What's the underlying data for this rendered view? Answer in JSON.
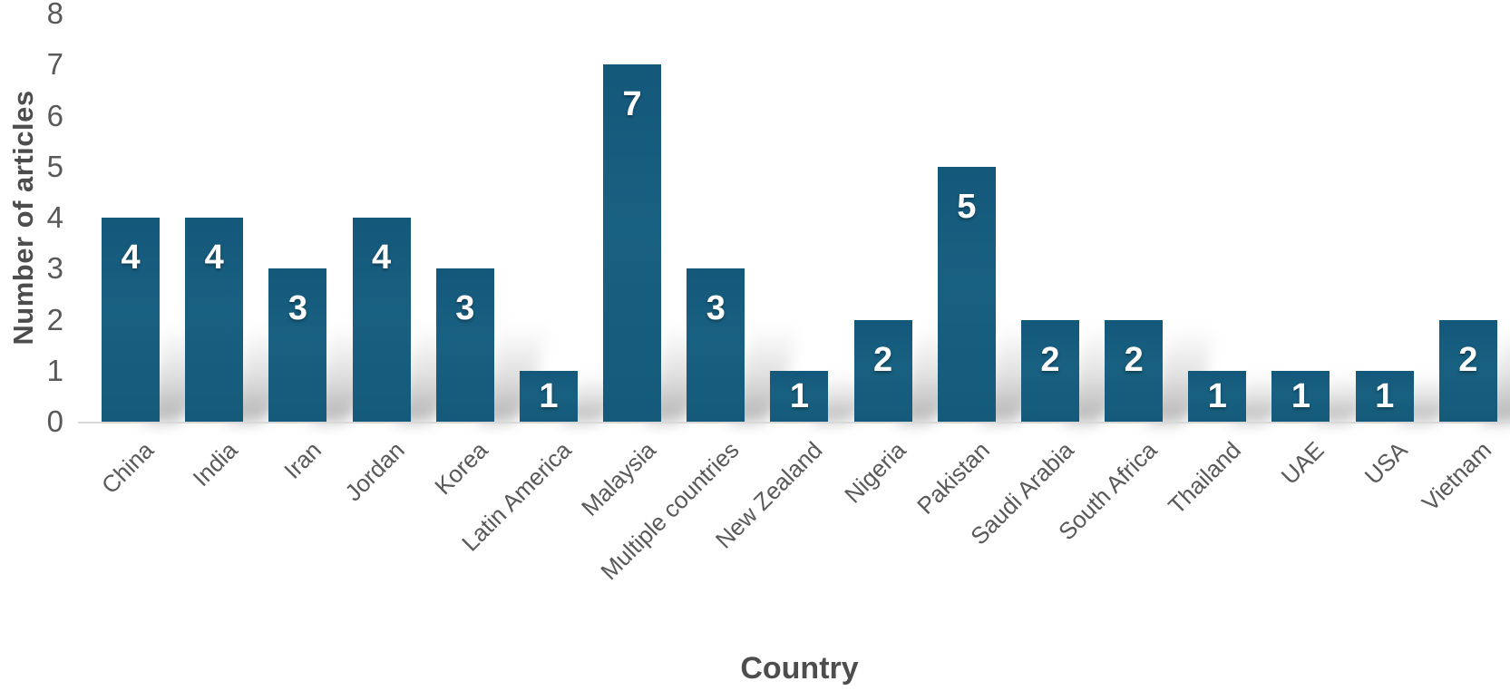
{
  "chart_data": {
    "type": "bar",
    "title": "",
    "xlabel": "Country",
    "ylabel": "Number of articles",
    "categories": [
      "China",
      "India",
      "Iran",
      "Jordan",
      "Korea",
      "Latin America",
      "Malaysia",
      "Multiple countries",
      "New Zealand",
      "Nigeria",
      "Pakistan",
      "Saudi Arabia",
      "South Africa",
      "Thailand",
      "UAE",
      "USA",
      "Vietnam"
    ],
    "values": [
      4,
      4,
      3,
      4,
      3,
      1,
      7,
      3,
      1,
      2,
      5,
      2,
      2,
      1,
      1,
      1,
      2
    ],
    "ylim": [
      0,
      8
    ],
    "yticks": [
      0,
      1,
      2,
      3,
      4,
      5,
      6,
      7,
      8
    ],
    "grid": false,
    "legend": "none",
    "data_labels": "inside-end",
    "bar_color": "#156082",
    "bar_label_color": "#ffffff",
    "axis_text_color": "#595959",
    "axis_title_color": "#4d4d4d",
    "axis_line_color": "#d9d9d9",
    "bar_shadow": true
  }
}
